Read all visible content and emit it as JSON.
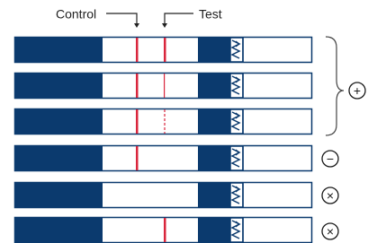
{
  "labels": {
    "control": "Control",
    "test": "Test"
  },
  "results": [
    "+",
    "−",
    "×",
    "×"
  ]
}
